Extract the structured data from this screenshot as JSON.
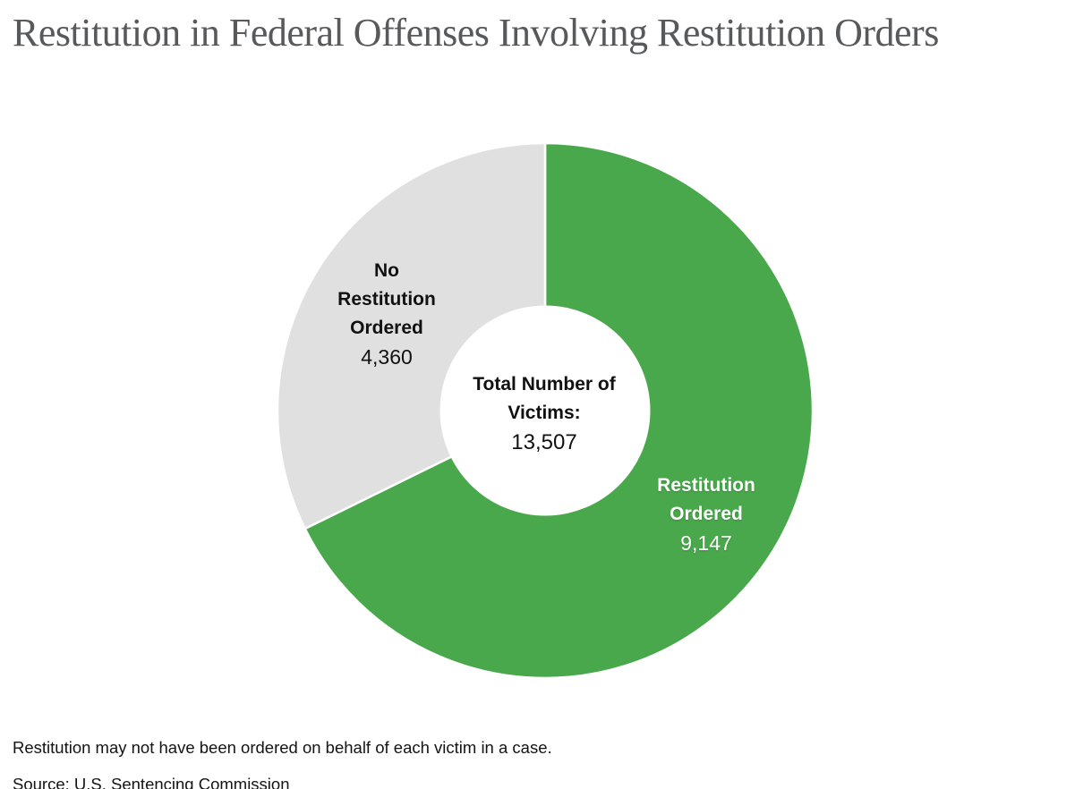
{
  "header": {
    "title": "Restitution in Federal Offenses Involving Restitution Orders"
  },
  "chart_data": {
    "type": "pie",
    "subtype": "donut",
    "title": "Restitution in Federal Offenses Involving Restitution Orders",
    "direction": "clockwise",
    "start_angle_deg": 0,
    "total": 13507,
    "center_label_line1": "Total Number of",
    "center_label_line2": "Victims:",
    "center_value_display": "13,507",
    "slices": [
      {
        "name": "restitution-ordered",
        "label": "Restitution Ordered",
        "label_line1": "Restitution",
        "label_line2": "Ordered",
        "value": 9147,
        "value_display": "9,147",
        "color": "#4AA84C",
        "label_color": "#ffffff"
      },
      {
        "name": "no-restitution-ordered",
        "label": "No Restitution Ordered",
        "label_line1": "No",
        "label_line2": "Restitution",
        "label_line3": "Ordered",
        "value": 4360,
        "value_display": "4,360",
        "color": "#E0E0E0",
        "label_color": "#111111"
      }
    ],
    "separator_color": "#ffffff",
    "hole_color": "#ffffff"
  },
  "footer": {
    "note": "Restitution may not have been ordered on behalf of each victim in a case.",
    "source": "Source: U.S. Sentencing Commission"
  }
}
